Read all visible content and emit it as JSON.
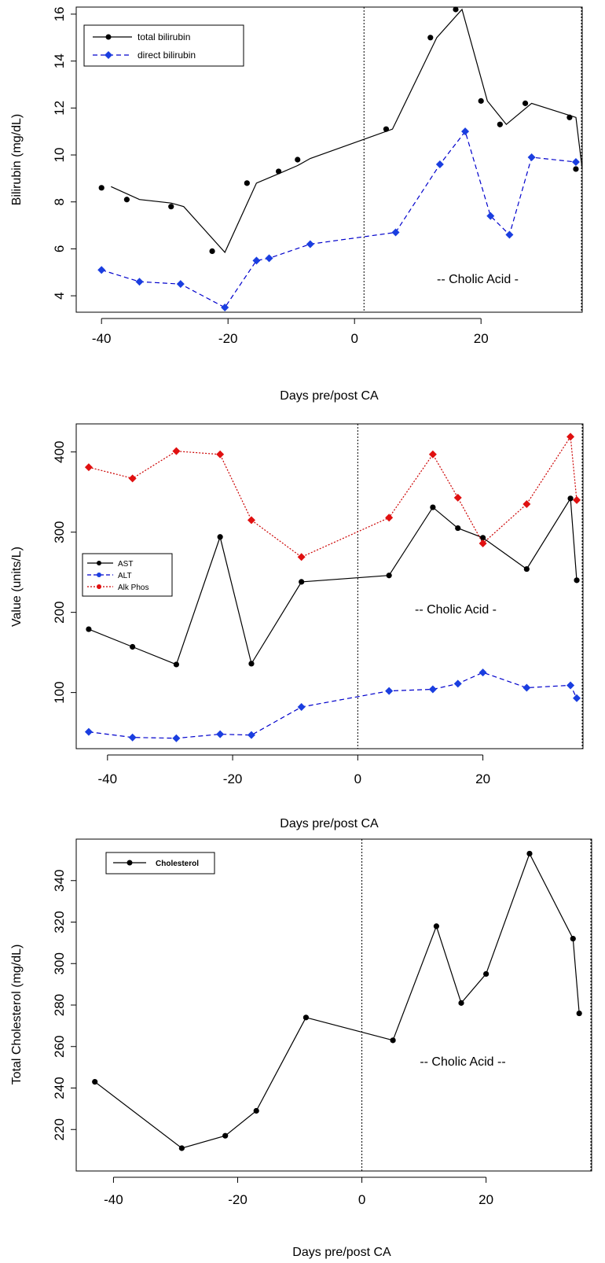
{
  "colors": {
    "black": "#000000",
    "blue": "#0000cc",
    "blue_marker": "#1a3ee0",
    "red": "#cc0000",
    "red_marker": "#e01010"
  },
  "chart_data": [
    {
      "type": "line",
      "title": "",
      "xlabel": "Days pre/post CA",
      "ylabel": "Bilirubin (mg/dL)",
      "xlim": [
        -44,
        36
      ],
      "ylim": [
        3.3,
        16.3
      ],
      "xticks": [
        -40,
        -20,
        0,
        20
      ],
      "yticks": [
        4,
        6,
        8,
        10,
        12,
        14,
        16
      ],
      "vlines": [
        1.5,
        36
      ],
      "annotation": "-- Cholic Acid -",
      "legend_position": "top-left",
      "series": [
        {
          "name": "total bilirubin",
          "style": "solid",
          "color": "#000000",
          "marker": "circle",
          "points": [
            [
              -40,
              8.6
            ],
            [
              -36,
              8.1
            ],
            [
              -29,
              7.8
            ],
            [
              -22.5,
              5.9
            ],
            [
              -17,
              8.8
            ],
            [
              -12,
              9.3
            ],
            [
              -9,
              9.8
            ],
            [
              5,
              11.1
            ],
            [
              12,
              15.0
            ],
            [
              16,
              16.2
            ],
            [
              20,
              12.3
            ],
            [
              23,
              11.3
            ],
            [
              27,
              12.2
            ],
            [
              34,
              11.6
            ],
            [
              35,
              9.4
            ]
          ],
          "line": [
            [
              -38.5,
              8.65
            ],
            [
              -34,
              8.1
            ],
            [
              -29,
              7.95
            ],
            [
              -27,
              7.8
            ],
            [
              -20.5,
              5.85
            ],
            [
              -15.5,
              8.8
            ],
            [
              -12,
              9.2
            ],
            [
              -9,
              9.55
            ],
            [
              -7,
              9.85
            ],
            [
              6,
              11.1
            ],
            [
              13,
              15.0
            ],
            [
              17,
              16.2
            ],
            [
              21,
              12.3
            ],
            [
              24,
              11.3
            ],
            [
              28,
              12.2
            ],
            [
              35,
              11.6
            ],
            [
              36,
              9.4
            ]
          ]
        },
        {
          "name": "direct bilirubin",
          "style": "dashed",
          "color": "#0000cc",
          "marker": "diamond",
          "points": [
            [
              -40,
              5.1
            ],
            [
              -34,
              4.6
            ],
            [
              -27.5,
              4.5
            ],
            [
              -20.5,
              3.5
            ],
            [
              -15.5,
              5.5
            ],
            [
              -13.5,
              5.6
            ],
            [
              -7,
              6.2
            ],
            [
              6.5,
              6.7
            ],
            [
              13.5,
              9.6
            ],
            [
              17.5,
              11.0
            ],
            [
              21.5,
              7.4
            ],
            [
              24.5,
              6.6
            ],
            [
              28,
              9.9
            ],
            [
              35,
              9.7
            ]
          ]
        }
      ]
    },
    {
      "type": "line",
      "title": "",
      "xlabel": "Days pre/post CA",
      "ylabel": "Value (units/L)",
      "xlim": [
        -45,
        36
      ],
      "ylim": [
        30,
        435
      ],
      "xticks": [
        -40,
        -20,
        0,
        20
      ],
      "yticks": [
        100,
        200,
        300,
        400
      ],
      "vlines": [
        0,
        36
      ],
      "annotation": "-- Cholic Acid -",
      "legend_position": "middle-left",
      "series": [
        {
          "name": "AST",
          "style": "solid",
          "color": "#000000",
          "marker": "circle",
          "points": [
            [
              -43,
              179
            ],
            [
              -36,
              157
            ],
            [
              -29,
              135
            ],
            [
              -22,
              294
            ],
            [
              -17,
              136
            ],
            [
              -9,
              238
            ],
            [
              5,
              246
            ],
            [
              12,
              331
            ],
            [
              16,
              305
            ],
            [
              20,
              293
            ],
            [
              27,
              254
            ],
            [
              34,
              342
            ],
            [
              35,
              240
            ]
          ]
        },
        {
          "name": "ALT",
          "style": "dashed",
          "color": "#0000cc",
          "marker": "diamond",
          "points": [
            [
              -43,
              51
            ],
            [
              -36,
              44
            ],
            [
              -29,
              43
            ],
            [
              -22,
              48
            ],
            [
              -17,
              47
            ],
            [
              -9,
              82
            ],
            [
              5,
              102
            ],
            [
              12,
              104
            ],
            [
              16,
              111
            ],
            [
              20,
              125
            ],
            [
              27,
              106
            ],
            [
              34,
              109
            ],
            [
              35,
              93
            ]
          ]
        },
        {
          "name": "Alk Phos",
          "style": "dotted",
          "color": "#cc0000",
          "marker": "diamond",
          "points": [
            [
              -43,
              381
            ],
            [
              -36,
              367
            ],
            [
              -29,
              401
            ],
            [
              -22,
              397
            ],
            [
              -17,
              315
            ],
            [
              -9,
              269
            ],
            [
              5,
              318
            ],
            [
              12,
              397
            ],
            [
              16,
              343
            ],
            [
              20,
              286
            ],
            [
              27,
              335
            ],
            [
              34,
              419
            ],
            [
              35,
              340
            ]
          ]
        }
      ]
    },
    {
      "type": "line",
      "title": "",
      "xlabel": "Days pre/post CA",
      "ylabel": "Total Cholesterol (mg/dL)",
      "xlim": [
        -46,
        37
      ],
      "ylim": [
        200,
        360
      ],
      "xticks": [
        -40,
        -20,
        0,
        20
      ],
      "yticks": [
        220,
        240,
        260,
        280,
        300,
        320,
        340
      ],
      "vlines": [
        0,
        37
      ],
      "annotation": "-- Cholic Acid --",
      "legend_position": "top-left",
      "series": [
        {
          "name": "Cholesterol",
          "style": "solid",
          "color": "#000000",
          "marker": "circle",
          "points": [
            [
              -43,
              243
            ],
            [
              -29,
              211
            ],
            [
              -22,
              217
            ],
            [
              -17,
              229
            ],
            [
              -9,
              274
            ],
            [
              5,
              263
            ],
            [
              12,
              318
            ],
            [
              16,
              281
            ],
            [
              20,
              295
            ],
            [
              27,
              353
            ],
            [
              34,
              312
            ],
            [
              35,
              276
            ]
          ]
        }
      ]
    }
  ]
}
